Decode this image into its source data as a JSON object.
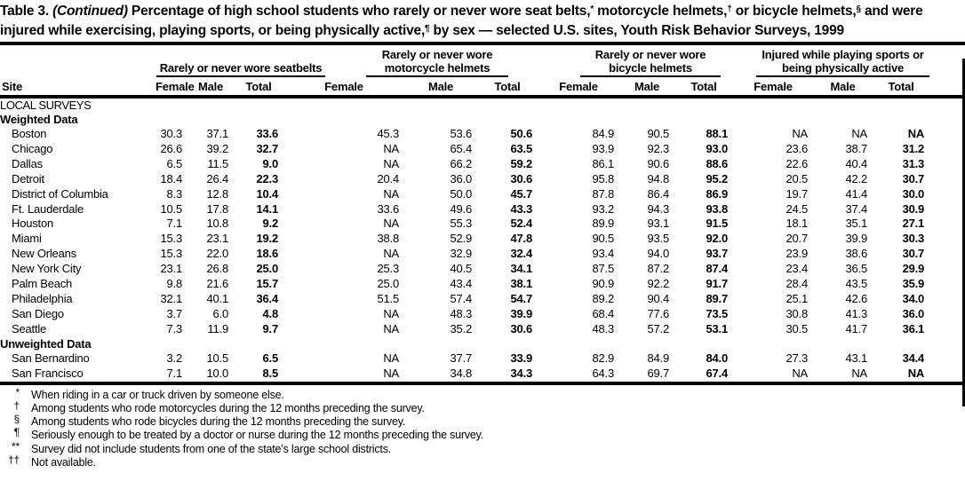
{
  "title": {
    "table_label": "Table 3.",
    "continued": "(Continued)",
    "seg1": " Percentage of high school students who rarely or never wore seat belts,",
    "sup1": "*",
    "seg2": " motorcycle helmets,",
    "sup2": "†",
    "seg3": " or bicycle helmets,",
    "sup3": "§",
    "seg4": " and were injured while exercising, playing sports, or being physically active,",
    "sup4": "¶",
    "seg5": " by sex — selected U.S. sites, Youth Risk Behavior Surveys, 1999"
  },
  "table": {
    "site_header": "Site",
    "groups": [
      {
        "label": "Rarely or never wore seatbelts",
        "cols": [
          "Female",
          "Male",
          "Total"
        ]
      },
      {
        "label": "Rarely or never wore motorcycle helmets",
        "cols": [
          "Female",
          "Male",
          "Total"
        ]
      },
      {
        "label": "Rarely or never wore bicycle helmets",
        "cols": [
          "Female",
          "Male",
          "Total"
        ]
      },
      {
        "label": "Injured while playing sports or being physically active",
        "cols": [
          "Female",
          "Male",
          "Total"
        ]
      }
    ],
    "sections": [
      {
        "heading": "LOCAL SURVEYS",
        "style": "region",
        "rows": []
      },
      {
        "heading": "Weighted Data",
        "style": "sub",
        "rows": [
          {
            "site": "Boston",
            "values": [
              "30.3",
              "37.1",
              "33.6",
              "45.3",
              "53.6",
              "50.6",
              "84.9",
              "90.5",
              "88.1",
              "NA",
              "NA",
              "NA"
            ]
          },
          {
            "site": "Chicago",
            "values": [
              "26.6",
              "39.2",
              "32.7",
              "NA",
              "65.4",
              "63.5",
              "93.9",
              "92.3",
              "93.0",
              "23.6",
              "38.7",
              "31.2"
            ]
          },
          {
            "site": "Dallas",
            "values": [
              "6.5",
              "11.5",
              "9.0",
              "NA",
              "66.2",
              "59.2",
              "86.1",
              "90.6",
              "88.6",
              "22.6",
              "40.4",
              "31.3"
            ]
          },
          {
            "site": "Detroit",
            "values": [
              "18.4",
              "26.4",
              "22.3",
              "20.4",
              "36.0",
              "30.6",
              "95.8",
              "94.8",
              "95.2",
              "20.5",
              "42.2",
              "30.7"
            ]
          },
          {
            "site": "District of Columbia",
            "values": [
              "8.3",
              "12.8",
              "10.4",
              "NA",
              "50.0",
              "45.7",
              "87.8",
              "86.4",
              "86.9",
              "19.7",
              "41.4",
              "30.0"
            ]
          },
          {
            "site": "Ft. Lauderdale",
            "values": [
              "10.5",
              "17.8",
              "14.1",
              "33.6",
              "49.6",
              "43.3",
              "93.2",
              "94.3",
              "93.8",
              "24.5",
              "37.4",
              "30.9"
            ]
          },
          {
            "site": "Houston",
            "values": [
              "7.1",
              "10.8",
              "9.2",
              "NA",
              "55.3",
              "52.4",
              "89.9",
              "93.1",
              "91.5",
              "18.1",
              "35.1",
              "27.1"
            ]
          },
          {
            "site": "Miami",
            "values": [
              "15.3",
              "23.1",
              "19.2",
              "38.8",
              "52.9",
              "47.8",
              "90.5",
              "93.5",
              "92.0",
              "20.7",
              "39.9",
              "30.3"
            ]
          },
          {
            "site": "New Orleans",
            "values": [
              "15.3",
              "22.0",
              "18.6",
              "NA",
              "32.9",
              "32.4",
              "93.4",
              "94.0",
              "93.7",
              "23.9",
              "38.6",
              "30.7"
            ]
          },
          {
            "site": "New York City",
            "values": [
              "23.1",
              "26.8",
              "25.0",
              "25.3",
              "40.5",
              "34.1",
              "87.5",
              "87.2",
              "87.4",
              "23.4",
              "36.5",
              "29.9"
            ]
          },
          {
            "site": "Palm Beach",
            "values": [
              "9.8",
              "21.6",
              "15.7",
              "25.0",
              "43.4",
              "38.1",
              "90.9",
              "92.2",
              "91.7",
              "28.4",
              "43.5",
              "35.9"
            ]
          },
          {
            "site": "Philadelphia",
            "values": [
              "32.1",
              "40.1",
              "36.4",
              "51.5",
              "57.4",
              "54.7",
              "89.2",
              "90.4",
              "89.7",
              "25.1",
              "42.6",
              "34.0"
            ]
          },
          {
            "site": "San Diego",
            "values": [
              "3.7",
              "6.0",
              "4.8",
              "NA",
              "48.3",
              "39.9",
              "68.4",
              "77.6",
              "73.5",
              "30.8",
              "41.3",
              "36.0"
            ]
          },
          {
            "site": "Seattle",
            "values": [
              "7.3",
              "11.9",
              "9.7",
              "NA",
              "35.2",
              "30.6",
              "48.3",
              "57.2",
              "53.1",
              "30.5",
              "41.7",
              "36.1"
            ]
          }
        ]
      },
      {
        "heading": "Unweighted Data",
        "style": "sub",
        "rows": [
          {
            "site": "San Bernardino",
            "values": [
              "3.2",
              "10.5",
              "6.5",
              "NA",
              "37.7",
              "33.9",
              "82.9",
              "84.9",
              "84.0",
              "27.3",
              "43.1",
              "34.4"
            ]
          },
          {
            "site": "San Francisco",
            "values": [
              "7.1",
              "10.0",
              "8.5",
              "NA",
              "34.8",
              "34.3",
              "64.3",
              "69.7",
              "67.4",
              "NA",
              "NA",
              "NA"
            ]
          }
        ]
      }
    ]
  },
  "footnotes": [
    {
      "symbol": "*",
      "text": "When riding in a car or truck driven by someone else."
    },
    {
      "symbol": "†",
      "text": "Among students who rode motorcycles during the 12 months preceding the survey."
    },
    {
      "symbol": "§",
      "text": "Among students who rode bicycles during the 12 months preceding the survey."
    },
    {
      "symbol": "¶",
      "text": "Seriously enough to be treated by a doctor or nurse during the 12 months preceding the survey."
    },
    {
      "symbol": "**",
      "text": "Survey did not include students from one of the state’s large school districts."
    },
    {
      "symbol": "††",
      "text": "Not available."
    }
  ]
}
